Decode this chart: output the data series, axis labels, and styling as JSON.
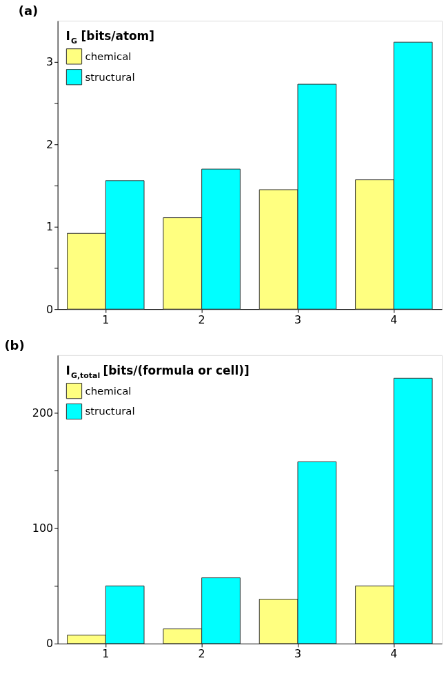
{
  "chart_data": [
    {
      "type": "bar",
      "title": "(a)",
      "ylabel": "I$_{G}$ [bits/atom]",
      "categories": [
        "1",
        "2",
        "3",
        "4"
      ],
      "series": [
        {
          "name": "chemical",
          "color": "#ffff80",
          "values": [
            0.92,
            1.11,
            1.45,
            1.57
          ]
        },
        {
          "name": "structural",
          "color": "#00ffff",
          "values": [
            1.56,
            1.7,
            2.73,
            3.24
          ]
        }
      ],
      "ylim": [
        0,
        3.5
      ],
      "yticks": [
        0,
        {
          "value": 0.5,
          "label": null
        },
        1,
        {
          "value": 1.5,
          "label": null
        },
        2,
        {
          "value": 2.5,
          "label": null
        },
        3
      ],
      "legend": "top left",
      "grid": false
    },
    {
      "type": "bar",
      "title": "(b)",
      "ylabel": "I$_{G,total}$ [bits/(formula or cell)]",
      "categories": [
        "1",
        "2",
        "3",
        "4"
      ],
      "series": [
        {
          "name": "chemical",
          "color": "#ffff80",
          "values": [
            7.3,
            12.7,
            38.5,
            50
          ]
        },
        {
          "name": "structural",
          "color": "#00ffff",
          "values": [
            50,
            57,
            157.6,
            230
          ]
        }
      ],
      "ylim": [
        0,
        250
      ],
      "yticks": [
        0,
        {
          "value": 50,
          "label": null
        },
        100,
        {
          "value": 150,
          "label": null
        },
        200
      ],
      "legend": "top left",
      "grid": false
    }
  ]
}
